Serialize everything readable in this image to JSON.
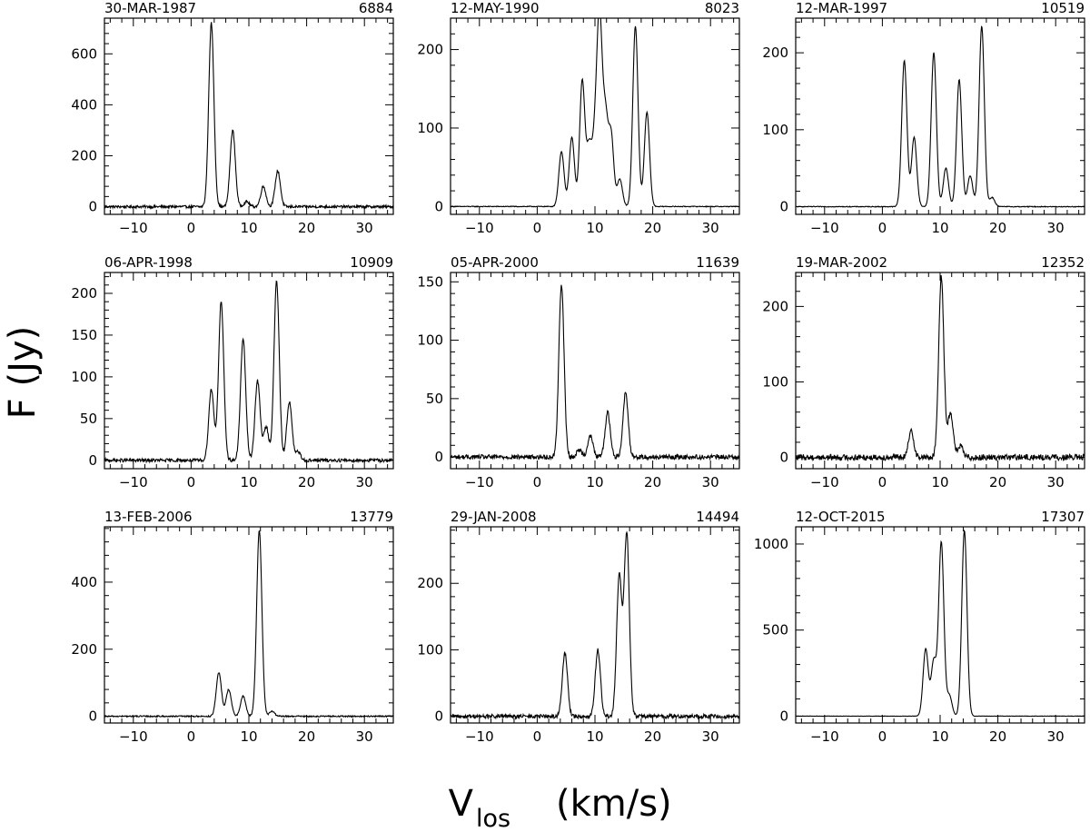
{
  "figure": {
    "ylabel": "F (Jy)",
    "xlabel_main": "V",
    "xlabel_sub": "los",
    "xlabel_unit": "(km/s)"
  },
  "chart_data": [
    {
      "type": "line",
      "date": "30-MAR-1987",
      "number": "6884",
      "xlim": [
        -15,
        35
      ],
      "ylim": [
        -30,
        740
      ],
      "xticks": [
        -10,
        0,
        10,
        20,
        30
      ],
      "yticks": [
        0,
        200,
        400,
        600
      ],
      "ylabel": "",
      "xlabel": "",
      "peaks": [
        [
          3.5,
          720
        ],
        [
          7.2,
          300
        ],
        [
          9.6,
          20
        ],
        [
          12.5,
          80
        ],
        [
          15.0,
          140
        ]
      ],
      "baseline_noise": 5
    },
    {
      "type": "line",
      "date": "12-MAY-1990",
      "number": "8023",
      "xlim": [
        -15,
        35
      ],
      "ylim": [
        -10,
        240
      ],
      "xticks": [
        -10,
        0,
        10,
        20,
        30
      ],
      "yticks": [
        0,
        100,
        200
      ],
      "ylabel": "",
      "xlabel": "",
      "peaks": [
        [
          4.2,
          70
        ],
        [
          6.0,
          88
        ],
        [
          7.8,
          160
        ],
        [
          9.0,
          75
        ],
        [
          10.0,
          80
        ],
        [
          10.8,
          230
        ],
        [
          11.8,
          110
        ],
        [
          12.8,
          90
        ],
        [
          14.3,
          35
        ],
        [
          17.0,
          230
        ],
        [
          19.0,
          120
        ]
      ],
      "baseline_noise": 0.5
    },
    {
      "type": "line",
      "date": "12-MAR-1997",
      "number": "10519",
      "xlim": [
        -15,
        35
      ],
      "ylim": [
        -10,
        245
      ],
      "xticks": [
        -10,
        0,
        10,
        20,
        30
      ],
      "yticks": [
        0,
        100,
        200
      ],
      "ylabel": "",
      "xlabel": "",
      "peaks": [
        [
          3.8,
          190
        ],
        [
          5.5,
          90
        ],
        [
          8.9,
          200
        ],
        [
          11.0,
          50
        ],
        [
          13.3,
          165
        ],
        [
          15.2,
          40
        ],
        [
          17.2,
          235
        ],
        [
          19.0,
          12
        ]
      ],
      "baseline_noise": 0.5
    },
    {
      "type": "line",
      "date": "06-APR-1998",
      "number": "10909",
      "xlim": [
        -15,
        35
      ],
      "ylim": [
        -10,
        225
      ],
      "xticks": [
        -10,
        0,
        10,
        20,
        30
      ],
      "yticks": [
        0,
        50,
        100,
        150,
        200
      ],
      "ylabel": "",
      "xlabel": "",
      "peaks": [
        [
          3.5,
          85
        ],
        [
          5.2,
          190
        ],
        [
          9.0,
          145
        ],
        [
          11.5,
          95
        ],
        [
          13.0,
          40
        ],
        [
          14.8,
          215
        ],
        [
          17.0,
          70
        ],
        [
          18.5,
          10
        ]
      ],
      "baseline_noise": 2
    },
    {
      "type": "line",
      "date": "05-APR-2000",
      "number": "11639",
      "xlim": [
        -15,
        35
      ],
      "ylim": [
        -10,
        158
      ],
      "xticks": [
        -10,
        0,
        10,
        20,
        30
      ],
      "yticks": [
        0,
        50,
        100,
        150
      ],
      "ylabel": "",
      "xlabel": "",
      "peaks": [
        [
          4.2,
          148
        ],
        [
          7.3,
          6
        ],
        [
          9.2,
          18
        ],
        [
          12.2,
          38
        ],
        [
          15.3,
          55
        ]
      ],
      "baseline_noise": 2
    },
    {
      "type": "line",
      "date": "19-MAR-2002",
      "number": "12352",
      "xlim": [
        -15,
        35
      ],
      "ylim": [
        -15,
        245
      ],
      "xticks": [
        -10,
        0,
        10,
        20,
        30
      ],
      "yticks": [
        0,
        100,
        200
      ],
      "ylabel": "",
      "xlabel": "",
      "peaks": [
        [
          5.0,
          35
        ],
        [
          10.2,
          240
        ],
        [
          11.8,
          60
        ],
        [
          13.5,
          15
        ]
      ],
      "baseline_noise": 4
    },
    {
      "type": "line",
      "date": "13-FEB-2006",
      "number": "13779",
      "xlim": [
        -15,
        35
      ],
      "ylim": [
        -20,
        565
      ],
      "xticks": [
        -10,
        0,
        10,
        20,
        30
      ],
      "yticks": [
        0,
        200,
        400
      ],
      "ylabel": "",
      "xlabel": "",
      "peaks": [
        [
          4.8,
          130
        ],
        [
          6.5,
          80
        ],
        [
          9.0,
          60
        ],
        [
          11.8,
          555
        ],
        [
          14.0,
          15
        ]
      ],
      "baseline_noise": 2
    },
    {
      "type": "line",
      "date": "29-JAN-2008",
      "number": "14494",
      "xlim": [
        -15,
        35
      ],
      "ylim": [
        -10,
        285
      ],
      "xticks": [
        -10,
        0,
        10,
        20,
        30
      ],
      "yticks": [
        0,
        100,
        200
      ],
      "ylabel": "",
      "xlabel": "",
      "peaks": [
        [
          4.8,
          95
        ],
        [
          10.5,
          100
        ],
        [
          14.2,
          210
        ],
        [
          15.5,
          275
        ]
      ],
      "baseline_noise": 3
    },
    {
      "type": "line",
      "date": "12-OCT-2015",
      "number": "17307",
      "xlim": [
        -15,
        35
      ],
      "ylim": [
        -40,
        1100
      ],
      "xticks": [
        -10,
        0,
        10,
        20,
        30
      ],
      "yticks": [
        0,
        500,
        1000
      ],
      "ylabel": "",
      "xlabel": "",
      "peaks": [
        [
          7.5,
          390
        ],
        [
          8.9,
          320
        ],
        [
          10.2,
          1010
        ],
        [
          11.6,
          120
        ],
        [
          14.2,
          1080
        ]
      ],
      "baseline_noise": 1
    }
  ]
}
